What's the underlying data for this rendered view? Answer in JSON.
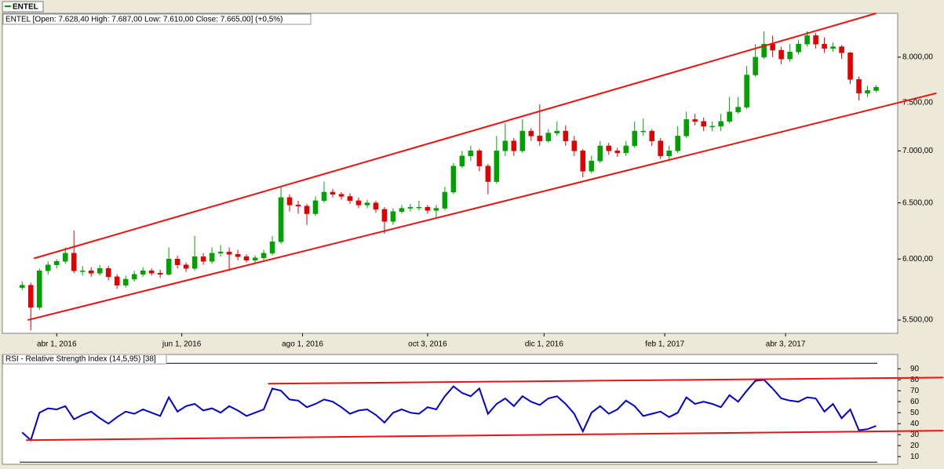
{
  "tab": "ENTEL",
  "chart_data": [
    {
      "type": "candlestick",
      "legend_text": "ENTEL [Open: 7.628,40  High: 7.687,00  Low: 7.610,00  Close: 7.665,00] (+0,5%)",
      "log_scale": true,
      "up_color": "#00a000",
      "down_color": "#e00000",
      "xlim": [
        -2.3,
        101.5
      ],
      "xticks": [
        {
          "value": 4,
          "label": "abr 1, 2016"
        },
        {
          "value": 18.5,
          "label": "jun 1, 2016"
        },
        {
          "value": 32.5,
          "label": "ago 1, 2016"
        },
        {
          "value": 47,
          "label": "oct 3, 2016"
        },
        {
          "value": 60.5,
          "label": "dic 1, 2016"
        },
        {
          "value": 74.5,
          "label": "feb 1, 2017"
        },
        {
          "value": 88.5,
          "label": "abr 3, 2017"
        }
      ],
      "ylim": [
        5397,
        8516
      ],
      "yticks": [
        {
          "value": 5500,
          "label": "5.500,00"
        },
        {
          "value": 6000,
          "label": "6.000,00"
        },
        {
          "value": 6500,
          "label": "6.500,00"
        },
        {
          "value": 7000,
          "label": "7.000,00"
        },
        {
          "value": 7500,
          "label": "7.500,00"
        },
        {
          "value": 8000,
          "label": "8.000,00"
        }
      ],
      "open": [
        5760,
        5780,
        5600,
        5900,
        5950,
        5980,
        6050,
        5900,
        5900,
        5880,
        5920,
        5850,
        5780,
        5830,
        5870,
        5900,
        5880,
        5870,
        6000,
        5950,
        5920,
        6020,
        5980,
        6050,
        6060,
        6040,
        6020,
        5990,
        6010,
        6050,
        6150,
        6550,
        6480,
        6470,
        6400,
        6520,
        6600,
        6580,
        6560,
        6520,
        6480,
        6500,
        6440,
        6330,
        6420,
        6450,
        6460,
        6460,
        6430,
        6450,
        6600,
        6850,
        6950,
        7000,
        6850,
        6700,
        7000,
        7100,
        7000,
        7200,
        7150,
        7100,
        7180,
        7200,
        7100,
        7000,
        6800,
        6900,
        7050,
        7000,
        6980,
        7050,
        7200,
        7200,
        7100,
        6950,
        7000,
        7150,
        7320,
        7300,
        7250,
        7250,
        7300,
        7400,
        7450,
        7800,
        8000,
        8150,
        8080,
        7980,
        8060,
        8150,
        8250,
        8150,
        8100,
        8120,
        8050,
        7750,
        7600,
        7628.4
      ],
      "high": [
        5810,
        5800,
        5920,
        5980,
        6000,
        6100,
        6250,
        5940,
        5930,
        5950,
        5940,
        5870,
        5860,
        5900,
        5930,
        5920,
        5910,
        6100,
        6030,
        5970,
        6200,
        6050,
        6100,
        6120,
        6100,
        6080,
        6040,
        6030,
        6080,
        6200,
        6650,
        6580,
        6520,
        6490,
        6560,
        6700,
        6630,
        6600,
        6590,
        6550,
        6530,
        6520,
        6460,
        6450,
        6480,
        6490,
        6520,
        6480,
        6480,
        6650,
        6880,
        7000,
        7050,
        7020,
        6870,
        7150,
        7280,
        7130,
        7320,
        7230,
        7480,
        7220,
        7300,
        7260,
        7150,
        7020,
        6950,
        7100,
        7080,
        7030,
        7100,
        7300,
        7330,
        7220,
        7130,
        7050,
        7250,
        7400,
        7380,
        7340,
        7300,
        7380,
        7560,
        7560,
        7900,
        8150,
        8300,
        8250,
        8120,
        8150,
        8200,
        8300,
        8280,
        8230,
        8170,
        8140,
        8060,
        7780,
        7680,
        7687
      ],
      "low": [
        5740,
        5420,
        5580,
        5870,
        5920,
        5960,
        5880,
        5860,
        5850,
        5860,
        5820,
        5750,
        5760,
        5810,
        5850,
        5860,
        5840,
        5860,
        5920,
        5890,
        5900,
        5950,
        5960,
        6020,
        5900,
        5990,
        5970,
        5970,
        5990,
        6030,
        6130,
        6420,
        6400,
        6300,
        6380,
        6500,
        6550,
        6530,
        6490,
        6450,
        6450,
        6410,
        6220,
        6300,
        6400,
        6420,
        6430,
        6400,
        6360,
        6430,
        6580,
        6830,
        6900,
        6800,
        6580,
        6680,
        6950,
        6950,
        6980,
        7100,
        7050,
        7080,
        7150,
        7050,
        6950,
        6740,
        6780,
        6880,
        6960,
        6940,
        6950,
        7030,
        7150,
        7050,
        6920,
        6900,
        6980,
        7130,
        7260,
        7200,
        7200,
        7200,
        7280,
        7380,
        7430,
        7780,
        7980,
        8000,
        7920,
        7950,
        8030,
        8120,
        8100,
        8050,
        8060,
        7980,
        7700,
        7520,
        7560,
        7610
      ],
      "close": [
        5780,
        5600,
        5900,
        5950,
        5980,
        6050,
        5900,
        5900,
        5880,
        5920,
        5850,
        5780,
        5830,
        5870,
        5900,
        5880,
        5870,
        6000,
        5950,
        5920,
        6020,
        5980,
        6050,
        6060,
        6040,
        6020,
        5990,
        6010,
        6050,
        6150,
        6550,
        6480,
        6470,
        6400,
        6520,
        6600,
        6580,
        6560,
        6520,
        6480,
        6500,
        6440,
        6330,
        6420,
        6450,
        6460,
        6460,
        6430,
        6450,
        6600,
        6850,
        6950,
        7000,
        6850,
        6700,
        7000,
        7100,
        7000,
        7200,
        7150,
        7100,
        7180,
        7200,
        7100,
        7000,
        6800,
        6900,
        7050,
        7000,
        6980,
        7050,
        7200,
        7200,
        7100,
        6950,
        7000,
        7150,
        7320,
        7300,
        7250,
        7250,
        7300,
        7400,
        7450,
        7800,
        8000,
        8150,
        8080,
        7980,
        8060,
        8150,
        8250,
        8150,
        8100,
        8120,
        8050,
        7750,
        7600,
        7630,
        7665
      ],
      "trendlines": [
        {
          "color": "#ee1111",
          "x": [
            1.36,
            99
          ],
          "y": [
            6005,
            8516
          ]
        },
        {
          "color": "#ee1111",
          "x": [
            0.64,
            106
          ],
          "y": [
            5500,
            7600
          ]
        }
      ]
    },
    {
      "type": "line",
      "title": "RSI - Relative Strength Index (14,5,95) [38]",
      "color": "#0000cc",
      "xlim": [
        -2.3,
        101.5
      ],
      "ylim": [
        3,
        103
      ],
      "yticks": [
        10,
        20,
        30,
        40,
        50,
        60,
        70,
        80,
        90
      ],
      "levels": [
        5,
        95
      ],
      "values": [
        32,
        25,
        50,
        54,
        53,
        56,
        44,
        48,
        51,
        45,
        40,
        46,
        51,
        49,
        53,
        50,
        47,
        64,
        51,
        56,
        58,
        52,
        54,
        50,
        56,
        52,
        47,
        50,
        53,
        72,
        70,
        62,
        61,
        55,
        58,
        62,
        60,
        55,
        49,
        52,
        53,
        48,
        41,
        50,
        53,
        50,
        49,
        55,
        53,
        65,
        74,
        68,
        65,
        72,
        49,
        58,
        63,
        56,
        65,
        60,
        57,
        63,
        65,
        58,
        49,
        33,
        50,
        56,
        49,
        53,
        61,
        56,
        47,
        49,
        51,
        46,
        50,
        64,
        58,
        60,
        58,
        55,
        66,
        60,
        70,
        79,
        80,
        72,
        63,
        61,
        60,
        64,
        63,
        51,
        58,
        45,
        53,
        34,
        35,
        38
      ],
      "trendlines": [
        {
          "color": "#ee1111",
          "x": [
            28.5,
            106.8
          ],
          "y": [
            76.4,
            82
          ]
        },
        {
          "color": "#ee1111",
          "x": [
            0.45,
            106.8
          ],
          "y": [
            25,
            33.6
          ]
        }
      ]
    }
  ]
}
